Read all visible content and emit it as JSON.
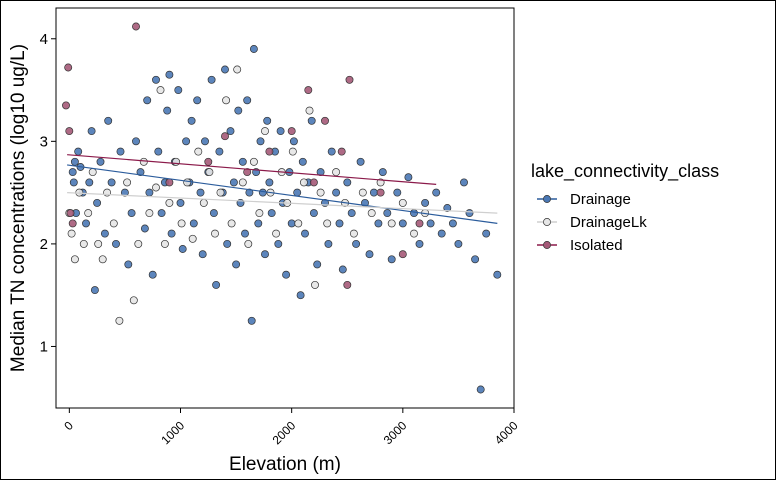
{
  "chart_data": {
    "type": "scatter",
    "title": "",
    "xlabel": "Elevation (m)",
    "ylabel": "Median TN concentrations (log10 ug/L)",
    "xlim": [
      -120,
      4000
    ],
    "ylim": [
      0.4,
      4.3
    ],
    "xticks": [
      0,
      1000,
      2000,
      3000,
      4000
    ],
    "yticks": [
      1,
      2,
      3,
      4
    ],
    "grid": false,
    "legend": {
      "title": "lake_connectivity_class",
      "placement": "right"
    },
    "series": [
      {
        "name": "Drainage",
        "color": "#4a78b5",
        "trend": {
          "x": [
            -20,
            3850
          ],
          "y": [
            2.77,
            2.2
          ]
        },
        "points": [
          [
            30,
            2.7
          ],
          [
            40,
            2.6
          ],
          [
            50,
            2.8
          ],
          [
            60,
            2.3
          ],
          [
            80,
            2.9
          ],
          [
            100,
            2.75
          ],
          [
            120,
            2.5
          ],
          [
            150,
            2.2
          ],
          [
            180,
            2.6
          ],
          [
            200,
            3.1
          ],
          [
            230,
            1.55
          ],
          [
            250,
            2.4
          ],
          [
            280,
            2.8
          ],
          [
            320,
            2.1
          ],
          [
            350,
            3.2
          ],
          [
            380,
            2.6
          ],
          [
            420,
            2.0
          ],
          [
            460,
            2.9
          ],
          [
            500,
            2.5
          ],
          [
            530,
            1.8
          ],
          [
            560,
            2.3
          ],
          [
            600,
            3.0
          ],
          [
            640,
            2.7
          ],
          [
            680,
            2.15
          ],
          [
            700,
            3.4
          ],
          [
            720,
            2.5
          ],
          [
            750,
            1.7
          ],
          [
            780,
            3.6
          ],
          [
            800,
            2.9
          ],
          [
            830,
            2.3
          ],
          [
            860,
            2.6
          ],
          [
            880,
            3.3
          ],
          [
            900,
            3.65
          ],
          [
            920,
            2.1
          ],
          [
            950,
            2.8
          ],
          [
            980,
            3.5
          ],
          [
            1000,
            2.4
          ],
          [
            1020,
            1.95
          ],
          [
            1050,
            3.0
          ],
          [
            1080,
            2.6
          ],
          [
            1100,
            3.2
          ],
          [
            1120,
            2.2
          ],
          [
            1150,
            3.4
          ],
          [
            1180,
            2.5
          ],
          [
            1200,
            1.9
          ],
          [
            1220,
            3.0
          ],
          [
            1250,
            2.7
          ],
          [
            1280,
            3.6
          ],
          [
            1300,
            2.3
          ],
          [
            1320,
            1.6
          ],
          [
            1350,
            2.9
          ],
          [
            1380,
            2.5
          ],
          [
            1400,
            3.7
          ],
          [
            1420,
            2.0
          ],
          [
            1450,
            3.1
          ],
          [
            1480,
            2.6
          ],
          [
            1500,
            1.8
          ],
          [
            1520,
            3.3
          ],
          [
            1540,
            2.4
          ],
          [
            1560,
            2.8
          ],
          [
            1580,
            2.1
          ],
          [
            1600,
            3.4
          ],
          [
            1620,
            2.5
          ],
          [
            1640,
            1.25
          ],
          [
            1660,
            3.9
          ],
          [
            1680,
            2.7
          ],
          [
            1700,
            2.2
          ],
          [
            1720,
            3.0
          ],
          [
            1740,
            2.5
          ],
          [
            1760,
            1.9
          ],
          [
            1780,
            3.2
          ],
          [
            1800,
            2.6
          ],
          [
            1820,
            2.3
          ],
          [
            1850,
            2.9
          ],
          [
            1880,
            2.0
          ],
          [
            1900,
            3.1
          ],
          [
            1920,
            2.4
          ],
          [
            1950,
            1.7
          ],
          [
            1980,
            2.7
          ],
          [
            2000,
            2.2
          ],
          [
            2020,
            3.0
          ],
          [
            2050,
            2.5
          ],
          [
            2080,
            1.5
          ],
          [
            2100,
            2.8
          ],
          [
            2120,
            2.1
          ],
          [
            2150,
            2.6
          ],
          [
            2180,
            3.2
          ],
          [
            2200,
            2.3
          ],
          [
            2230,
            1.8
          ],
          [
            2260,
            2.7
          ],
          [
            2300,
            2.4
          ],
          [
            2330,
            2.0
          ],
          [
            2360,
            2.9
          ],
          [
            2400,
            2.5
          ],
          [
            2430,
            2.2
          ],
          [
            2460,
            1.75
          ],
          [
            2500,
            2.6
          ],
          [
            2540,
            2.3
          ],
          [
            2580,
            2.0
          ],
          [
            2620,
            2.8
          ],
          [
            2660,
            2.4
          ],
          [
            2700,
            1.9
          ],
          [
            2740,
            2.5
          ],
          [
            2780,
            2.2
          ],
          [
            2820,
            2.7
          ],
          [
            2860,
            2.3
          ],
          [
            2900,
            1.85
          ],
          [
            2950,
            2.5
          ],
          [
            3000,
            2.2
          ],
          [
            3050,
            2.65
          ],
          [
            3100,
            2.3
          ],
          [
            3150,
            2.0
          ],
          [
            3200,
            2.4
          ],
          [
            3250,
            2.2
          ],
          [
            3300,
            2.5
          ],
          [
            3350,
            2.1
          ],
          [
            3400,
            2.35
          ],
          [
            3450,
            2.2
          ],
          [
            3500,
            2.0
          ],
          [
            3550,
            2.6
          ],
          [
            3600,
            2.3
          ],
          [
            3650,
            1.85
          ],
          [
            3700,
            0.58
          ],
          [
            3750,
            2.1
          ],
          [
            3850,
            1.7
          ]
        ]
      },
      {
        "name": "DrainageLk",
        "color": "#e6e6e6",
        "trend": {
          "x": [
            -20,
            3850
          ],
          "y": [
            2.5,
            2.3
          ]
        },
        "points": [
          [
            0,
            2.3
          ],
          [
            20,
            2.1
          ],
          [
            50,
            1.85
          ],
          [
            90,
            2.5
          ],
          [
            130,
            2.0
          ],
          [
            170,
            2.3
          ],
          [
            210,
            2.7
          ],
          [
            260,
            2.0
          ],
          [
            300,
            1.85
          ],
          [
            340,
            2.5
          ],
          [
            400,
            2.2
          ],
          [
            450,
            1.25
          ],
          [
            520,
            2.6
          ],
          [
            580,
            1.45
          ],
          [
            620,
            2.0
          ],
          [
            670,
            2.8
          ],
          [
            720,
            2.3
          ],
          [
            780,
            2.55
          ],
          [
            820,
            3.5
          ],
          [
            860,
            2.0
          ],
          [
            900,
            2.4
          ],
          [
            960,
            2.8
          ],
          [
            1010,
            2.2
          ],
          [
            1060,
            2.6
          ],
          [
            1110,
            2.05
          ],
          [
            1160,
            2.9
          ],
          [
            1210,
            2.4
          ],
          [
            1260,
            2.7
          ],
          [
            1310,
            2.1
          ],
          [
            1360,
            2.5
          ],
          [
            1410,
            3.4
          ],
          [
            1460,
            2.2
          ],
          [
            1510,
            3.7
          ],
          [
            1560,
            2.6
          ],
          [
            1610,
            2.0
          ],
          [
            1660,
            2.8
          ],
          [
            1710,
            2.3
          ],
          [
            1760,
            3.1
          ],
          [
            1810,
            2.5
          ],
          [
            1860,
            2.1
          ],
          [
            1910,
            2.7
          ],
          [
            1960,
            2.4
          ],
          [
            2010,
            2.9
          ],
          [
            2060,
            2.2
          ],
          [
            2110,
            2.6
          ],
          [
            2160,
            3.3
          ],
          [
            2210,
            1.6
          ],
          [
            2260,
            2.5
          ],
          [
            2320,
            2.2
          ],
          [
            2400,
            2.7
          ],
          [
            2480,
            2.4
          ],
          [
            2560,
            2.1
          ],
          [
            2640,
            2.5
          ],
          [
            2720,
            2.3
          ],
          [
            2800,
            2.6
          ],
          [
            2900,
            2.2
          ],
          [
            3000,
            2.4
          ],
          [
            3100,
            2.1
          ],
          [
            3200,
            2.3
          ]
        ]
      },
      {
        "name": "Isolated",
        "color": "#a55a78",
        "trend": {
          "x": [
            -20,
            3300
          ],
          "y": [
            2.87,
            2.58
          ]
        },
        "points": [
          [
            -30,
            3.35
          ],
          [
            -10,
            3.72
          ],
          [
            0,
            3.1
          ],
          [
            10,
            2.3
          ],
          [
            30,
            2.2
          ],
          [
            600,
            4.12
          ],
          [
            900,
            2.6
          ],
          [
            1250,
            2.8
          ],
          [
            1400,
            3.05
          ],
          [
            1600,
            2.7
          ],
          [
            1800,
            2.9
          ],
          [
            2000,
            3.1
          ],
          [
            2150,
            3.5
          ],
          [
            2200,
            2.6
          ],
          [
            2300,
            3.2
          ],
          [
            2450,
            2.9
          ],
          [
            2500,
            1.6
          ],
          [
            2520,
            3.6
          ],
          [
            2800,
            2.5
          ],
          [
            3000,
            1.9
          ],
          [
            3150,
            2.2
          ]
        ]
      }
    ]
  }
}
